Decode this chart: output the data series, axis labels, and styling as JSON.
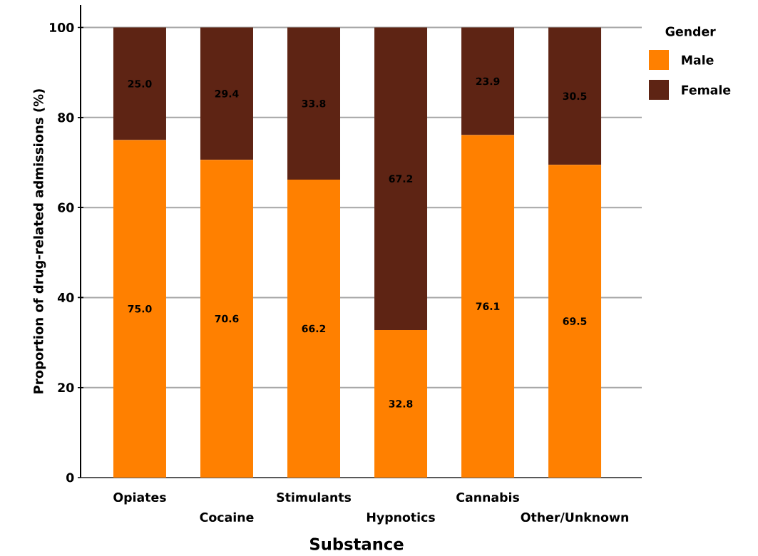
{
  "chart_data": {
    "type": "bar",
    "stacked": true,
    "xlabel": "Substance",
    "ylabel": "Proportion of drug-related admissions (%)",
    "legend_title": "Gender",
    "legend": "top right",
    "grid": "y",
    "categories": [
      "Opiates",
      "Cocaine",
      "Stimulants",
      "Hypnotics",
      "Cannabis",
      "Other/Unknown"
    ],
    "series": [
      {
        "name": "Male",
        "color": "#ff8000",
        "values": [
          75.0,
          70.6,
          66.2,
          32.8,
          76.1,
          69.5
        ],
        "value_labels": [
          "75.0",
          "70.6",
          "66.2",
          "32.8",
          "76.1",
          "69.5"
        ]
      },
      {
        "name": "Female",
        "color": "#5e2414",
        "values": [
          25.0,
          29.4,
          33.8,
          67.2,
          23.9,
          30.5
        ],
        "value_labels": [
          "25.0",
          "29.4",
          "33.8",
          "67.2",
          "23.9",
          "30.5"
        ]
      }
    ],
    "ylim": [
      0,
      105
    ],
    "yticks": [
      0,
      20,
      40,
      60,
      80,
      100
    ]
  }
}
